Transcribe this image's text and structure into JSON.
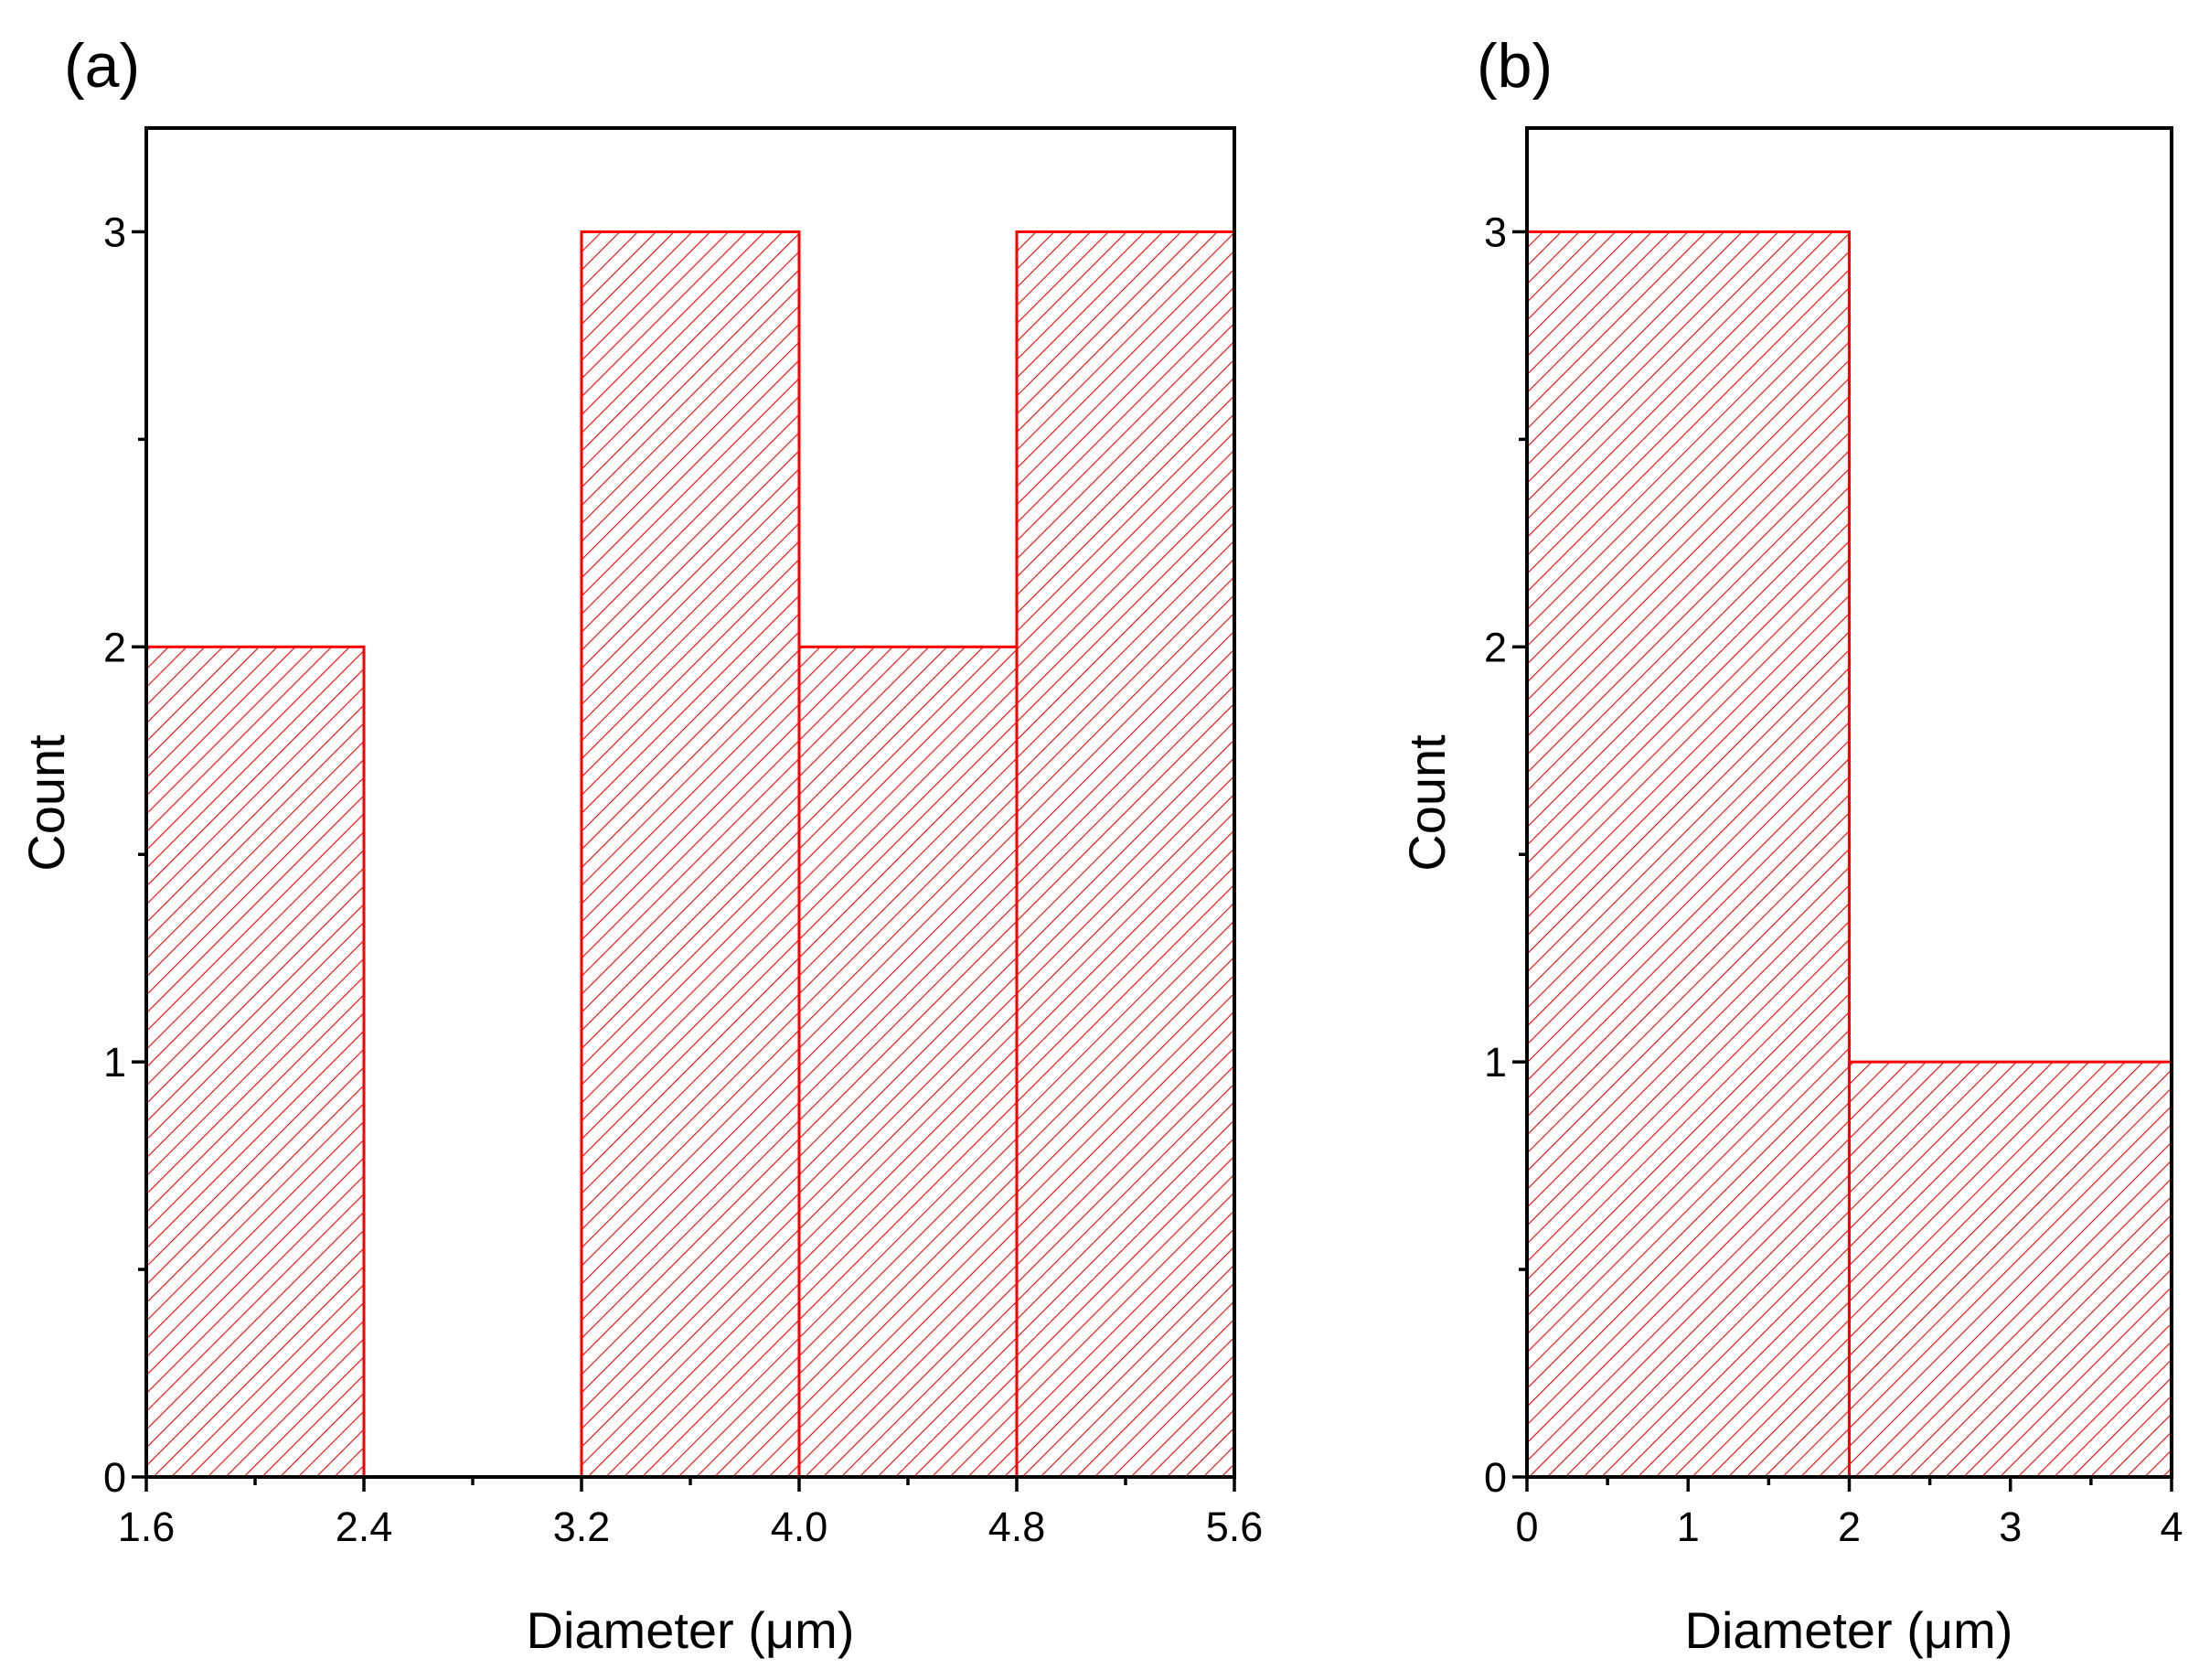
{
  "colors": {
    "bar_edge": "#ff0000",
    "hatch": "#ff0000",
    "axes": "#000000",
    "background": "#ffffff"
  },
  "chart_data": [
    {
      "type": "bar",
      "panel_label": "(a)",
      "xlabel": "Diameter (μm)",
      "ylabel": "Count",
      "xlim": [
        1.6,
        5.6
      ],
      "ylim": [
        0,
        3.25
      ],
      "bin_edges": [
        1.6,
        2.4,
        3.2,
        4.0,
        4.8,
        5.6
      ],
      "values": [
        2,
        0,
        3,
        2,
        3
      ],
      "x_ticks": [
        {
          "value": 1.6,
          "label": "1.6"
        },
        {
          "value": 2.4,
          "label": "2.4"
        },
        {
          "value": 3.2,
          "label": "3.2"
        },
        {
          "value": 4.0,
          "label": "4.0"
        },
        {
          "value": 4.8,
          "label": "4.8"
        },
        {
          "value": 5.6,
          "label": "5.6"
        }
      ],
      "x_minor_step": 0.4,
      "y_ticks": [
        {
          "value": 0,
          "label": "0"
        },
        {
          "value": 1,
          "label": "1"
        },
        {
          "value": 2,
          "label": "2"
        },
        {
          "value": 3,
          "label": "3"
        }
      ],
      "y_minor_step": 0.5,
      "fill": "hatched",
      "grid": false
    },
    {
      "type": "bar",
      "panel_label": "(b)",
      "xlabel": "Diameter (μm)",
      "ylabel": "Count",
      "xlim": [
        0,
        4
      ],
      "ylim": [
        0,
        3.25
      ],
      "bin_edges": [
        0,
        2,
        4
      ],
      "values": [
        3,
        1
      ],
      "x_ticks": [
        {
          "value": 0,
          "label": "0"
        },
        {
          "value": 1,
          "label": "1"
        },
        {
          "value": 2,
          "label": "2"
        },
        {
          "value": 3,
          "label": "3"
        },
        {
          "value": 4,
          "label": "4"
        }
      ],
      "x_minor_step": 0.5,
      "y_ticks": [
        {
          "value": 0,
          "label": "0"
        },
        {
          "value": 1,
          "label": "1"
        },
        {
          "value": 2,
          "label": "2"
        },
        {
          "value": 3,
          "label": "3"
        }
      ],
      "y_minor_step": 0.5,
      "fill": "hatched",
      "grid": false
    }
  ]
}
